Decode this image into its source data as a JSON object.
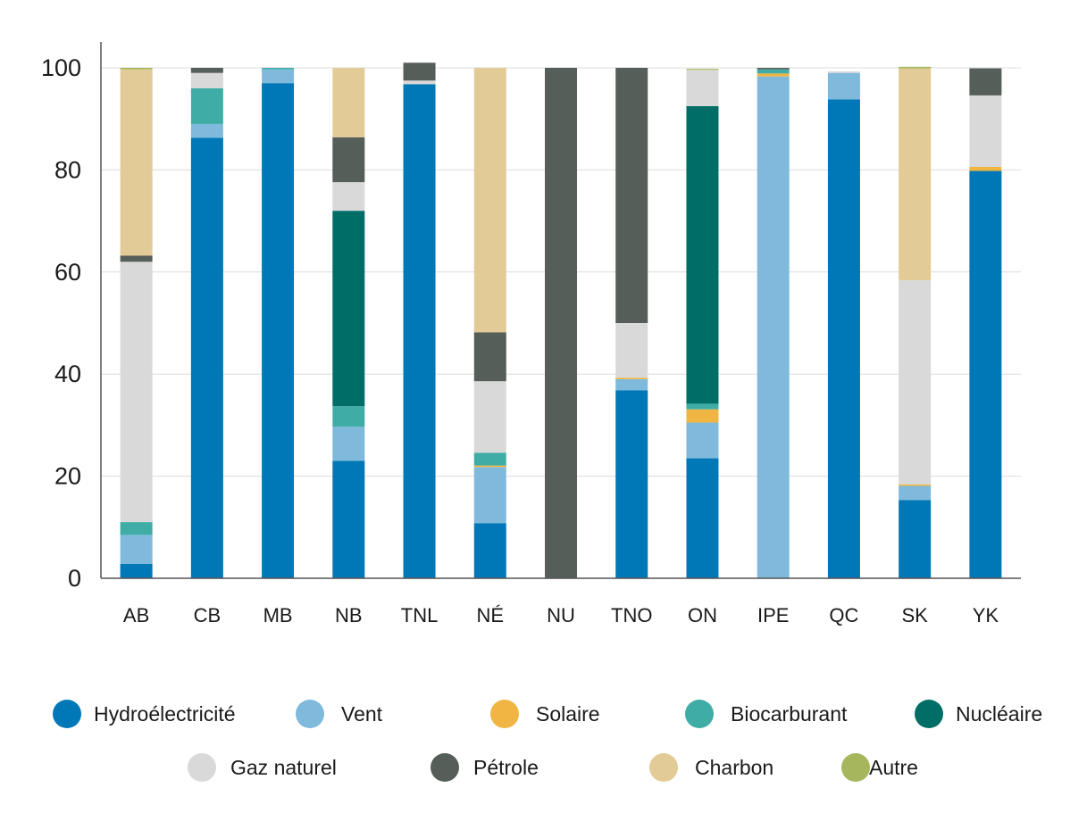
{
  "chart_data": {
    "type": "bar",
    "stacked": true,
    "title": "",
    "xlabel": "",
    "ylabel": "",
    "ylim": [
      0,
      100
    ],
    "yticks": [
      0,
      20,
      40,
      60,
      80,
      100
    ],
    "grid": "horizontal",
    "legend_position": "bottom",
    "categories": [
      "AB",
      "CB",
      "MB",
      "NB",
      "TNL",
      "NÉ",
      "NU",
      "TNO",
      "ON",
      "IPE",
      "QC",
      "SK",
      "YK"
    ],
    "series": [
      {
        "name": "Hydroélectricité",
        "color": "#0077b6",
        "values": [
          2.8,
          86.3,
          97,
          23,
          96.8,
          10.8,
          0,
          36.8,
          23.5,
          0,
          93.8,
          15.3,
          79.8
        ]
      },
      {
        "name": "Vent",
        "color": "#7fbadc",
        "values": [
          5.7,
          2.7,
          2.7,
          6.7,
          0,
          11,
          0,
          2.2,
          7,
          98.3,
          5.2,
          2.8,
          0
        ]
      },
      {
        "name": "Solaire",
        "color": "#f0b542",
        "values": [
          0,
          0,
          0,
          0,
          0,
          0.3,
          0,
          0.3,
          2.6,
          0.6,
          0,
          0.3,
          0.8
        ]
      },
      {
        "name": "Biocarburant",
        "color": "#3fada5",
        "values": [
          2.5,
          7,
          0.3,
          4,
          0,
          2.5,
          0,
          0,
          1.1,
          0.8,
          0,
          0,
          0
        ]
      },
      {
        "name": "Nucléaire",
        "color": "#006e66",
        "values": [
          0,
          0,
          0,
          38.3,
          0,
          0,
          0,
          0,
          58.3,
          0,
          0,
          0,
          0
        ]
      },
      {
        "name": "Gaz naturel",
        "color": "#d9d9d9",
        "values": [
          51,
          3,
          0,
          5.6,
          0.7,
          14,
          0,
          10.7,
          7.1,
          0,
          0.3,
          40,
          14
        ]
      },
      {
        "name": "Pétrole",
        "color": "#565e5a",
        "values": [
          1.2,
          1,
          0,
          8.8,
          3.5,
          9.6,
          100,
          50,
          0,
          0.3,
          0,
          0,
          5.3
        ]
      },
      {
        "name": "Charbon",
        "color": "#e3cb97",
        "values": [
          36.5,
          0,
          0,
          13.6,
          0,
          51.8,
          0,
          0,
          0,
          0,
          0,
          41.5,
          0
        ]
      },
      {
        "name": "Autre",
        "color": "#a6b65c",
        "values": [
          0.3,
          0,
          0,
          0,
          0,
          0,
          0,
          0,
          0.2,
          0,
          0,
          0.3,
          0
        ]
      }
    ]
  }
}
